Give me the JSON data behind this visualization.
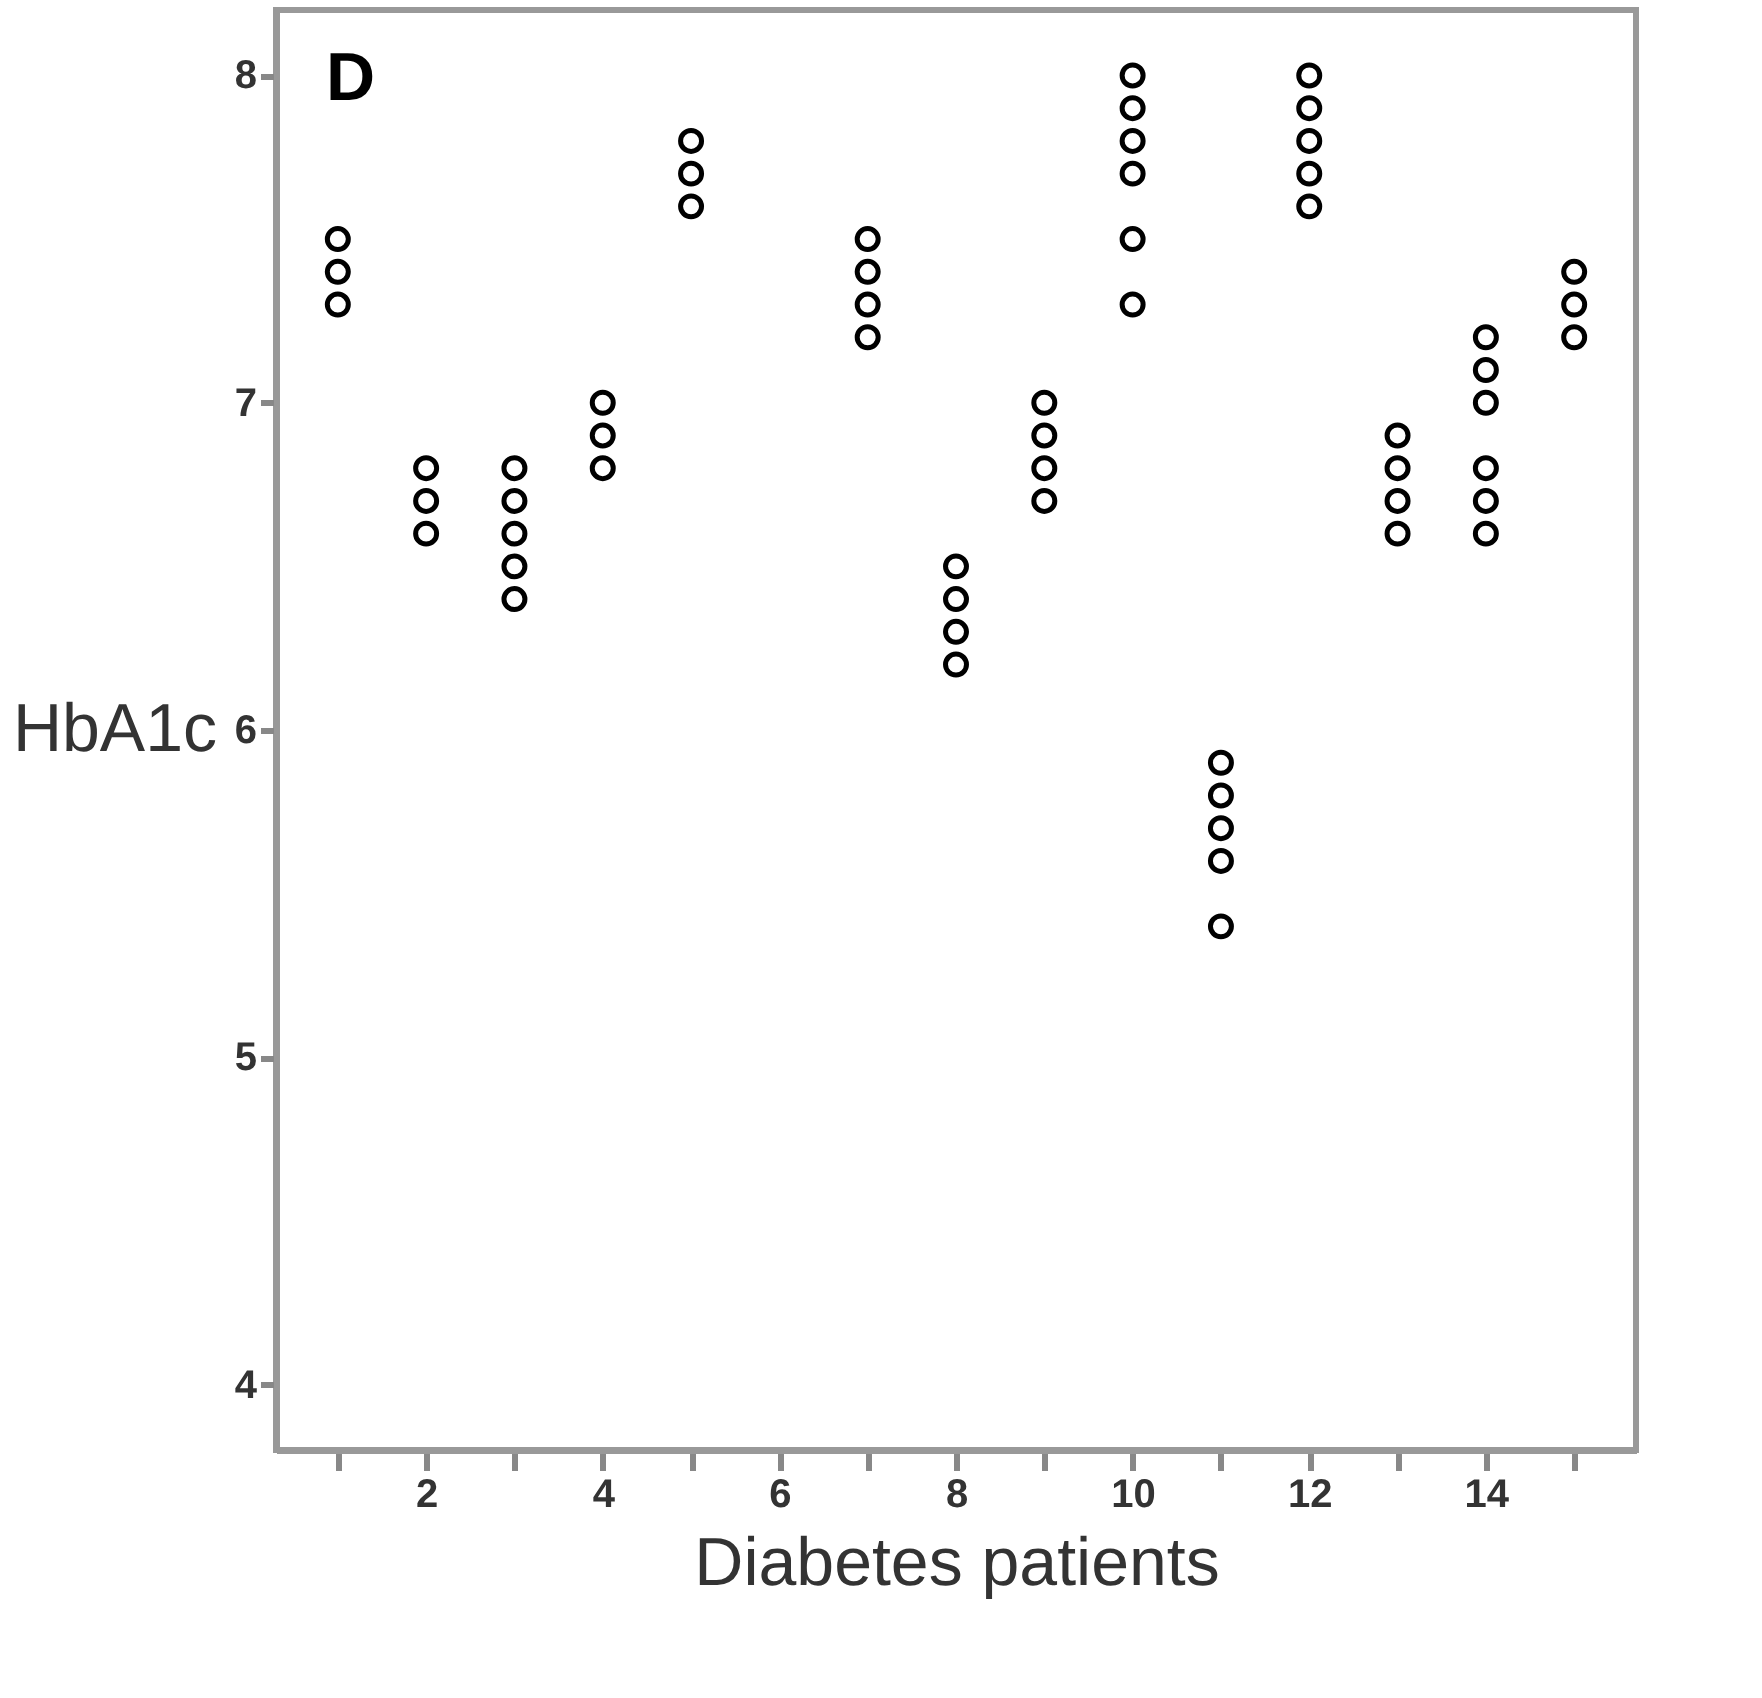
{
  "chart_data": {
    "type": "scatter",
    "xlabel": "Diabetes patients",
    "ylabel": "HbA1c",
    "annotations": [
      "D"
    ],
    "x": [
      1,
      1,
      1,
      2,
      2,
      2,
      3,
      3,
      3,
      3,
      3,
      4,
      4,
      4,
      5,
      5,
      5,
      7,
      7,
      7,
      7,
      8,
      8,
      8,
      8,
      9,
      9,
      9,
      9,
      10,
      10,
      10,
      10,
      10,
      10,
      11,
      11,
      11,
      11,
      11,
      12,
      12,
      12,
      12,
      12,
      13,
      13,
      13,
      13,
      14,
      14,
      14,
      14,
      14,
      14,
      15,
      15,
      15
    ],
    "values": [
      7.3,
      7.4,
      7.5,
      6.6,
      6.7,
      6.8,
      6.4,
      6.5,
      6.6,
      6.7,
      6.8,
      6.8,
      6.9,
      7.0,
      7.6,
      7.7,
      7.8,
      7.2,
      7.3,
      7.4,
      7.5,
      6.2,
      6.3,
      6.4,
      6.5,
      6.7,
      6.8,
      6.9,
      7.0,
      7.3,
      7.5,
      7.7,
      7.8,
      7.9,
      8.0,
      5.4,
      5.6,
      5.7,
      5.8,
      5.9,
      7.6,
      7.7,
      7.8,
      7.9,
      8.0,
      6.6,
      6.7,
      6.8,
      6.9,
      6.6,
      6.7,
      6.8,
      7.0,
      7.1,
      7.2,
      7.2,
      7.3,
      7.4
    ],
    "color": "#000000",
    "marker": "circle",
    "xlim": [
      0.3,
      15.7
    ],
    "ylim": [
      3.8,
      8.2
    ],
    "xticks": [
      {
        "value": 1,
        "label": null
      },
      2,
      {
        "value": 3,
        "label": null
      },
      4,
      {
        "value": 5,
        "label": null
      },
      6,
      {
        "value": 7,
        "label": null
      },
      8,
      {
        "value": 9,
        "label": null
      },
      10,
      {
        "value": 11,
        "label": null
      },
      12,
      {
        "value": 13,
        "label": null
      },
      14,
      {
        "value": 15,
        "label": null
      }
    ],
    "yticks": [
      4,
      5,
      6,
      7,
      8
    ],
    "grid": false
  }
}
